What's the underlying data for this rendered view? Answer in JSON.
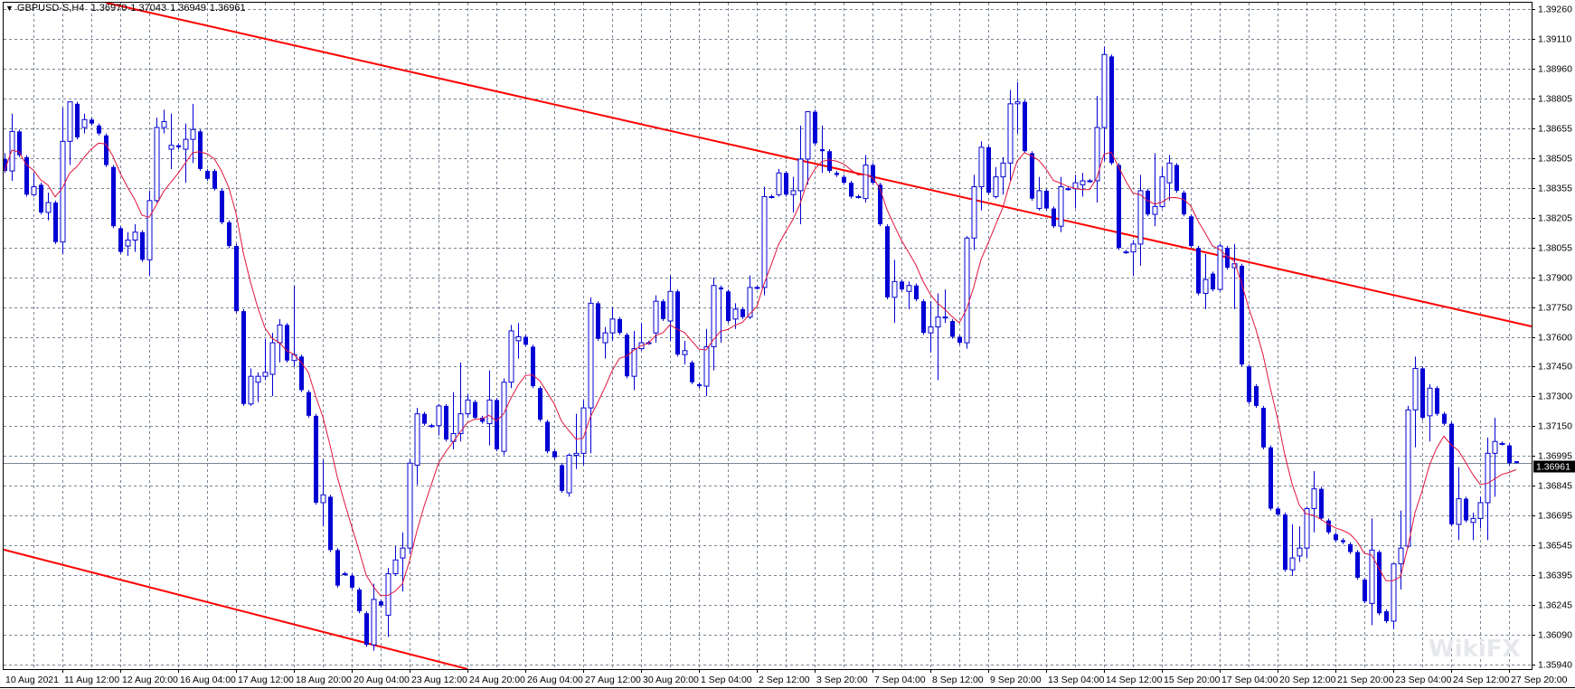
{
  "header": {
    "menu_icon": "triangle-down-icon",
    "symbol": "GBPUSD-S,H4",
    "open": "1.36970",
    "high": "1.37043",
    "low": "1.36949",
    "close": "1.36961"
  },
  "watermark": "WikiFX",
  "colors": {
    "candle": "#0000d4",
    "bull_fill": "#ffffff",
    "ma": "#e0143c",
    "trendline": "#ff0000",
    "grid": "#7a8594",
    "bid_line": "#7a8594",
    "price_tag_bg": "#000000",
    "price_tag_text": "#ffffff"
  },
  "chart_data": {
    "type": "candlestick",
    "symbol": "GBPUSD-S",
    "timeframe": "H4",
    "ylim": [
      1.3594,
      1.3926
    ],
    "grid": true,
    "current_price": "1.36961",
    "price_ticks": [
      "1.39260",
      "1.39110",
      "1.38960",
      "1.38805",
      "1.38655",
      "1.38505",
      "1.38355",
      "1.38205",
      "1.38055",
      "1.37900",
      "1.37750",
      "1.37600",
      "1.37450",
      "1.37300",
      "1.37150",
      "1.36995",
      "1.36845",
      "1.36695",
      "1.36545",
      "1.36395",
      "1.36245",
      "1.36090",
      "1.35940"
    ],
    "time_ticks": [
      "10 Aug 2021",
      "11 Aug 12:00",
      "12 Aug 20:00",
      "16 Aug 04:00",
      "17 Aug 12:00",
      "18 Aug 20:00",
      "20 Aug 04:00",
      "23 Aug 12:00",
      "24 Aug 20:00",
      "26 Aug 04:00",
      "27 Aug 12:00",
      "30 Aug 20:00",
      "1 Sep 04:00",
      "2 Sep 12:00",
      "3 Sep 20:00",
      "7 Sep 04:00",
      "8 Sep 12:00",
      "9 Sep 20:00",
      "13 Sep 04:00",
      "14 Sep 12:00",
      "15 Sep 20:00",
      "17 Sep 04:00",
      "20 Sep 12:00",
      "21 Sep 20:00",
      "23 Sep 04:00",
      "24 Sep 12:00",
      "27 Sep 20:00"
    ],
    "bars_per_time_tick": 8,
    "candles_ohlc": [
      [
        1.385,
        1.3853,
        1.3843,
        1.3844
      ],
      [
        1.3844,
        1.3873,
        1.3839,
        1.3864
      ],
      [
        1.3864,
        1.3865,
        1.3851,
        1.3852
      ],
      [
        1.3851,
        1.3852,
        1.3831,
        1.3832
      ],
      [
        1.3832,
        1.3843,
        1.3831,
        1.3836
      ],
      [
        1.3837,
        1.3838,
        1.3822,
        1.3823
      ],
      [
        1.3823,
        1.3833,
        1.3819,
        1.3828
      ],
      [
        1.3828,
        1.3829,
        1.3807,
        1.3808
      ],
      [
        1.3808,
        1.3876,
        1.3802,
        1.3859
      ],
      [
        1.3859,
        1.3879,
        1.3847,
        1.3879
      ],
      [
        1.3878,
        1.3879,
        1.386,
        1.3861
      ],
      [
        1.3866,
        1.3873,
        1.3863,
        1.387
      ],
      [
        1.387,
        1.3871,
        1.3867,
        1.3868
      ],
      [
        1.3867,
        1.3868,
        1.3862,
        1.3863
      ],
      [
        1.3862,
        1.3863,
        1.3846,
        1.3847
      ],
      [
        1.3846,
        1.3847,
        1.3815,
        1.3816
      ],
      [
        1.3815,
        1.3816,
        1.3802,
        1.3803
      ],
      [
        1.3806,
        1.3813,
        1.3801,
        1.3809
      ],
      [
        1.3809,
        1.3817,
        1.3803,
        1.3813
      ],
      [
        1.3813,
        1.3814,
        1.3798,
        1.3799
      ],
      [
        1.3799,
        1.3834,
        1.3791,
        1.3829
      ],
      [
        1.3829,
        1.3871,
        1.3828,
        1.3866
      ],
      [
        1.3866,
        1.3875,
        1.3863,
        1.3869
      ],
      [
        1.3855,
        1.3873,
        1.3845,
        1.3857
      ],
      [
        1.3857,
        1.3858,
        1.3855,
        1.3856
      ],
      [
        1.3855,
        1.3868,
        1.3838,
        1.386
      ],
      [
        1.386,
        1.3878,
        1.3848,
        1.3865
      ],
      [
        1.3864,
        1.3865,
        1.3844,
        1.3845
      ],
      [
        1.3844,
        1.3845,
        1.3839,
        1.384
      ],
      [
        1.3844,
        1.3845,
        1.3834,
        1.3835
      ],
      [
        1.3834,
        1.3835,
        1.3817,
        1.3818
      ],
      [
        1.3818,
        1.3819,
        1.3805,
        1.3806
      ],
      [
        1.3806,
        1.3807,
        1.3772,
        1.3773
      ],
      [
        1.3773,
        1.3774,
        1.3725,
        1.3726
      ],
      [
        1.3726,
        1.3744,
        1.3725,
        1.374
      ],
      [
        1.3737,
        1.3742,
        1.3727,
        1.374
      ],
      [
        1.374,
        1.3759,
        1.3738,
        1.3742
      ],
      [
        1.3741,
        1.3762,
        1.373,
        1.3757
      ],
      [
        1.3757,
        1.3769,
        1.3747,
        1.3766
      ],
      [
        1.3766,
        1.3767,
        1.3747,
        1.3748
      ],
      [
        1.3748,
        1.3786,
        1.3745,
        1.3751
      ],
      [
        1.375,
        1.3751,
        1.3732,
        1.3733
      ],
      [
        1.3732,
        1.3733,
        1.3719,
        1.372
      ],
      [
        1.372,
        1.3721,
        1.3675,
        1.3676
      ],
      [
        1.3676,
        1.3698,
        1.3664,
        1.368
      ],
      [
        1.3679,
        1.368,
        1.3651,
        1.3652
      ],
      [
        1.3652,
        1.3653,
        1.3633,
        1.3634
      ],
      [
        1.364,
        1.3641,
        1.3639,
        1.364
      ],
      [
        1.3639,
        1.364,
        1.3632,
        1.3633
      ],
      [
        1.3632,
        1.3633,
        1.362,
        1.3621
      ],
      [
        1.362,
        1.3621,
        1.3603,
        1.3604
      ],
      [
        1.3604,
        1.3635,
        1.3601,
        1.3627
      ],
      [
        1.3626,
        1.3627,
        1.3623,
        1.3624
      ],
      [
        1.3619,
        1.3643,
        1.3608,
        1.364
      ],
      [
        1.364,
        1.3654,
        1.3639,
        1.3647
      ],
      [
        1.3648,
        1.3661,
        1.3631,
        1.3653
      ],
      [
        1.3653,
        1.3698,
        1.365,
        1.3696
      ],
      [
        1.3695,
        1.3724,
        1.3685,
        1.3721
      ],
      [
        1.3721,
        1.3722,
        1.3715,
        1.3716
      ],
      [
        1.3715,
        1.3716,
        1.3714,
        1.3715
      ],
      [
        1.3715,
        1.3726,
        1.371,
        1.3725
      ],
      [
        1.3725,
        1.3726,
        1.3707,
        1.3708
      ],
      [
        1.3707,
        1.3732,
        1.3703,
        1.3711
      ],
      [
        1.3711,
        1.3747,
        1.3707,
        1.3721
      ],
      [
        1.3721,
        1.3731,
        1.3719,
        1.3728
      ],
      [
        1.3727,
        1.3728,
        1.3718,
        1.3719
      ],
      [
        1.3719,
        1.372,
        1.3716,
        1.3717
      ],
      [
        1.3716,
        1.3743,
        1.3705,
        1.3728
      ],
      [
        1.3728,
        1.3729,
        1.3702,
        1.3703
      ],
      [
        1.3702,
        1.3739,
        1.37,
        1.3737
      ],
      [
        1.3737,
        1.3766,
        1.3734,
        1.3763
      ],
      [
        1.3758,
        1.3767,
        1.3749,
        1.376
      ],
      [
        1.376,
        1.3761,
        1.3755,
        1.3756
      ],
      [
        1.3755,
        1.3756,
        1.3734,
        1.3735
      ],
      [
        1.3734,
        1.3735,
        1.3717,
        1.3718
      ],
      [
        1.3717,
        1.3718,
        1.3701,
        1.3702
      ],
      [
        1.3702,
        1.3703,
        1.3698,
        1.3699
      ],
      [
        1.3695,
        1.3696,
        1.3681,
        1.3682
      ],
      [
        1.3681,
        1.3701,
        1.3679,
        1.37
      ],
      [
        1.37,
        1.3721,
        1.3693,
        1.3701
      ],
      [
        1.3701,
        1.3728,
        1.3695,
        1.3724
      ],
      [
        1.3724,
        1.378,
        1.3701,
        1.3777
      ],
      [
        1.3777,
        1.3778,
        1.3758,
        1.3759
      ],
      [
        1.3757,
        1.3765,
        1.3749,
        1.3762
      ],
      [
        1.3762,
        1.3775,
        1.3758,
        1.3769
      ],
      [
        1.3769,
        1.377,
        1.3761,
        1.3762
      ],
      [
        1.3761,
        1.3762,
        1.3739,
        1.374
      ],
      [
        1.374,
        1.3763,
        1.3733,
        1.3754
      ],
      [
        1.3754,
        1.3767,
        1.3753,
        1.3757
      ],
      [
        1.3757,
        1.3758,
        1.3756,
        1.3757
      ],
      [
        1.3762,
        1.3781,
        1.3757,
        1.3778
      ],
      [
        1.3778,
        1.3779,
        1.3768,
        1.3769
      ],
      [
        1.3768,
        1.3791,
        1.3758,
        1.3783
      ],
      [
        1.3783,
        1.3784,
        1.375,
        1.3751
      ],
      [
        1.3751,
        1.3758,
        1.3746,
        1.3753
      ],
      [
        1.3747,
        1.3748,
        1.3736,
        1.3737
      ],
      [
        1.3736,
        1.3737,
        1.3734,
        1.3735
      ],
      [
        1.3735,
        1.3764,
        1.373,
        1.3755
      ],
      [
        1.3755,
        1.379,
        1.3743,
        1.3786
      ],
      [
        1.3785,
        1.3786,
        1.3757,
        1.3784
      ],
      [
        1.3783,
        1.3784,
        1.3767,
        1.3768
      ],
      [
        1.3769,
        1.3777,
        1.3764,
        1.3774
      ],
      [
        1.3774,
        1.3775,
        1.3769,
        1.377
      ],
      [
        1.377,
        1.3791,
        1.3769,
        1.3785
      ],
      [
        1.3785,
        1.3786,
        1.3784,
        1.3785
      ],
      [
        1.3785,
        1.3836,
        1.3781,
        1.3831
      ],
      [
        1.3831,
        1.3832,
        1.383,
        1.3831
      ],
      [
        1.3832,
        1.3845,
        1.3831,
        1.3843
      ],
      [
        1.3843,
        1.3844,
        1.3831,
        1.3832
      ],
      [
        1.3832,
        1.3841,
        1.3823,
        1.3834
      ],
      [
        1.3834,
        1.3867,
        1.3817,
        1.385
      ],
      [
        1.385,
        1.3874,
        1.3837,
        1.3874
      ],
      [
        1.3874,
        1.3875,
        1.3857,
        1.3858
      ],
      [
        1.3855,
        1.3867,
        1.3843,
        1.3854
      ],
      [
        1.3854,
        1.3855,
        1.3843,
        1.3844
      ],
      [
        1.3843,
        1.3844,
        1.3841,
        1.3842
      ],
      [
        1.3841,
        1.3842,
        1.3837,
        1.3838
      ],
      [
        1.3838,
        1.3839,
        1.383,
        1.3831
      ],
      [
        1.3831,
        1.3832,
        1.383,
        1.3831
      ],
      [
        1.383,
        1.3852,
        1.3828,
        1.3847
      ],
      [
        1.3847,
        1.3848,
        1.3837,
        1.3838
      ],
      [
        1.3837,
        1.3838,
        1.3816,
        1.3817
      ],
      [
        1.3816,
        1.3817,
        1.3779,
        1.378
      ],
      [
        1.378,
        1.3799,
        1.3767,
        1.3788
      ],
      [
        1.3788,
        1.3789,
        1.3783,
        1.3784
      ],
      [
        1.3783,
        1.3788,
        1.3774,
        1.3786
      ],
      [
        1.3786,
        1.3787,
        1.3778,
        1.3779
      ],
      [
        1.3778,
        1.3779,
        1.3761,
        1.3762
      ],
      [
        1.3762,
        1.3778,
        1.3752,
        1.3765
      ],
      [
        1.3765,
        1.3782,
        1.3738,
        1.377
      ],
      [
        1.377,
        1.3784,
        1.3767,
        1.377
      ],
      [
        1.3768,
        1.3769,
        1.3759,
        1.376
      ],
      [
        1.376,
        1.3761,
        1.3756,
        1.3757
      ],
      [
        1.3757,
        1.3811,
        1.3754,
        1.381
      ],
      [
        1.381,
        1.3842,
        1.3804,
        1.3836
      ],
      [
        1.3836,
        1.3859,
        1.3824,
        1.3856
      ],
      [
        1.3856,
        1.3857,
        1.3832,
        1.3833
      ],
      [
        1.3831,
        1.3846,
        1.383,
        1.3841
      ],
      [
        1.3841,
        1.3851,
        1.3832,
        1.3848
      ],
      [
        1.3848,
        1.3885,
        1.3839,
        1.3878
      ],
      [
        1.3878,
        1.3889,
        1.3863,
        1.3879
      ],
      [
        1.3879,
        1.388,
        1.3853,
        1.3854
      ],
      [
        1.3853,
        1.3854,
        1.3829,
        1.383
      ],
      [
        1.3825,
        1.3841,
        1.3824,
        1.3834
      ],
      [
        1.3834,
        1.3835,
        1.3824,
        1.3825
      ],
      [
        1.3825,
        1.3826,
        1.3815,
        1.3816
      ],
      [
        1.3816,
        1.3841,
        1.3813,
        1.3836
      ],
      [
        1.3835,
        1.3836,
        1.3834,
        1.3835
      ],
      [
        1.3835,
        1.3842,
        1.3825,
        1.3838
      ],
      [
        1.3837,
        1.3843,
        1.3831,
        1.3839
      ],
      [
        1.3839,
        1.384,
        1.3838,
        1.3839
      ],
      [
        1.3839,
        1.3882,
        1.3828,
        1.3866
      ],
      [
        1.3866,
        1.3907,
        1.3849,
        1.3903
      ],
      [
        1.3902,
        1.3903,
        1.3847,
        1.3848
      ],
      [
        1.3847,
        1.3848,
        1.3804,
        1.3805
      ],
      [
        1.3803,
        1.3804,
        1.3802,
        1.3803
      ],
      [
        1.3803,
        1.3809,
        1.3791,
        1.3807
      ],
      [
        1.3807,
        1.3842,
        1.3796,
        1.3834
      ],
      [
        1.3834,
        1.3835,
        1.3821,
        1.3822
      ],
      [
        1.3822,
        1.3853,
        1.3816,
        1.3826
      ],
      [
        1.3826,
        1.3846,
        1.3825,
        1.3841
      ],
      [
        1.3838,
        1.3852,
        1.3829,
        1.3848
      ],
      [
        1.3847,
        1.3848,
        1.3833,
        1.3834
      ],
      [
        1.3833,
        1.3834,
        1.3821,
        1.3822
      ],
      [
        1.3821,
        1.3822,
        1.3805,
        1.3806
      ],
      [
        1.3805,
        1.3806,
        1.3781,
        1.3782
      ],
      [
        1.3782,
        1.3802,
        1.3774,
        1.3789
      ],
      [
        1.3792,
        1.3793,
        1.3783,
        1.3784
      ],
      [
        1.3784,
        1.3807,
        1.3783,
        1.3806
      ],
      [
        1.3805,
        1.3806,
        1.3794,
        1.3795
      ],
      [
        1.3795,
        1.3807,
        1.3774,
        1.3797
      ],
      [
        1.3796,
        1.3797,
        1.3745,
        1.3746
      ],
      [
        1.3745,
        1.3746,
        1.3726,
        1.3727
      ],
      [
        1.3735,
        1.3736,
        1.3724,
        1.3725
      ],
      [
        1.3724,
        1.3725,
        1.3703,
        1.3704
      ],
      [
        1.3704,
        1.3705,
        1.3672,
        1.3673
      ],
      [
        1.3673,
        1.3674,
        1.3669,
        1.367
      ],
      [
        1.367,
        1.3671,
        1.3641,
        1.3642
      ],
      [
        1.3642,
        1.3665,
        1.3639,
        1.3648
      ],
      [
        1.3649,
        1.3664,
        1.3646,
        1.3653
      ],
      [
        1.3653,
        1.3674,
        1.3648,
        1.3673
      ],
      [
        1.3673,
        1.3692,
        1.3661,
        1.3683
      ],
      [
        1.3683,
        1.3684,
        1.3667,
        1.3668
      ],
      [
        1.3667,
        1.3668,
        1.366,
        1.3661
      ],
      [
        1.366,
        1.3661,
        1.3656,
        1.3657
      ],
      [
        1.3657,
        1.3658,
        1.3655,
        1.3656
      ],
      [
        1.3655,
        1.3656,
        1.365,
        1.3651
      ],
      [
        1.3651,
        1.3652,
        1.3637,
        1.3638
      ],
      [
        1.3637,
        1.3638,
        1.3625,
        1.3626
      ],
      [
        1.3625,
        1.3668,
        1.3614,
        1.3652
      ],
      [
        1.3651,
        1.3652,
        1.3619,
        1.362
      ],
      [
        1.3621,
        1.3622,
        1.3615,
        1.3616
      ],
      [
        1.3616,
        1.3645,
        1.3612,
        1.3645
      ],
      [
        1.3645,
        1.3672,
        1.3632,
        1.3653
      ],
      [
        1.3654,
        1.3725,
        1.3653,
        1.3723
      ],
      [
        1.3723,
        1.375,
        1.3704,
        1.3744
      ],
      [
        1.3744,
        1.3745,
        1.3718,
        1.3719
      ],
      [
        1.372,
        1.3736,
        1.3707,
        1.3734
      ],
      [
        1.3734,
        1.3735,
        1.372,
        1.3721
      ],
      [
        1.3721,
        1.3722,
        1.3715,
        1.3716
      ],
      [
        1.3716,
        1.3717,
        1.3664,
        1.3665
      ],
      [
        1.3665,
        1.3694,
        1.3657,
        1.3678
      ],
      [
        1.3678,
        1.3679,
        1.3666,
        1.3667
      ],
      [
        1.3666,
        1.3671,
        1.3657,
        1.3668
      ],
      [
        1.3668,
        1.3679,
        1.3663,
        1.3676
      ],
      [
        1.3676,
        1.3709,
        1.3657,
        1.3701
      ],
      [
        1.3701,
        1.3719,
        1.3679,
        1.3707
      ],
      [
        1.3706,
        1.3707,
        1.3705,
        1.3706
      ],
      [
        1.3705,
        1.3706,
        1.3695,
        1.3696
      ],
      [
        1.3697,
        1.3697,
        1.3696,
        1.3696
      ]
    ],
    "trendlines": [
      {
        "name": "upper",
        "points": [
          [
            17.9,
            1.3926
          ],
          [
            211.1,
            1.37653
          ]
        ]
      },
      {
        "name": "lower",
        "points": [
          [
            45.6,
            1.36091
          ],
          [
            63.1,
            1.35926
          ]
        ]
      }
    ],
    "indicator": "moving-average"
  }
}
